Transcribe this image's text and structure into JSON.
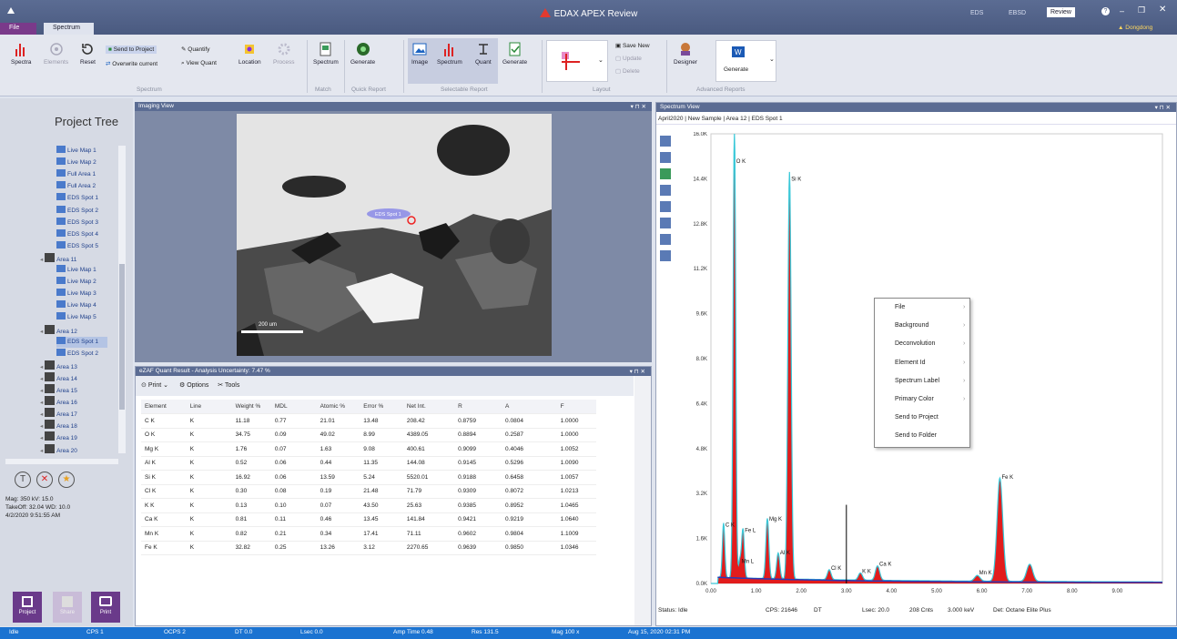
{
  "window": {
    "title": "EDAX APEX Review",
    "tabs": [
      "File",
      "Spectrum"
    ],
    "right_buttons": [
      "EDS",
      "EBSD",
      "Review"
    ],
    "user": "Dongdong"
  },
  "ribbon": {
    "spectra": "Spectra",
    "elements": "Elements",
    "reset": "Reset",
    "send_to_project": "Send to Project",
    "overwrite_current": "Overwrite current",
    "quantify": "Quantify",
    "view_quant": "View Quant",
    "location": "Location",
    "process": "Process",
    "spectrum_match": "Spectrum",
    "generate_quick": "Generate",
    "image": "Image",
    "spectrum_sel": "Spectrum",
    "quant_sel": "Quant",
    "generate_sel": "Generate",
    "save_new": "Save New",
    "update": "Update",
    "delete": "Delete",
    "designer": "Designer",
    "generate_adv": "Generate",
    "groups": [
      "Spectrum",
      "Match",
      "Quick Report",
      "Selectable Report",
      "Layout",
      "Advanced Reports"
    ]
  },
  "project_tree": {
    "title": "Project Tree",
    "items": [
      {
        "label": "Live Map 1",
        "indent": 2,
        "icon": "map"
      },
      {
        "label": "Live Map 2",
        "indent": 2,
        "icon": "map"
      },
      {
        "label": "Full Area 1",
        "indent": 2,
        "icon": "spec"
      },
      {
        "label": "Full Area 2",
        "indent": 2,
        "icon": "spec"
      },
      {
        "label": "EDS Spot 1",
        "indent": 2,
        "icon": "spec"
      },
      {
        "label": "EDS Spot 2",
        "indent": 2,
        "icon": "spec"
      },
      {
        "label": "EDS Spot 3",
        "indent": 2,
        "icon": "spec"
      },
      {
        "label": "EDS Spot 4",
        "indent": 2,
        "icon": "spec"
      },
      {
        "label": "EDS Spot 5",
        "indent": 2,
        "icon": "spec"
      },
      {
        "label": "Area 11",
        "indent": 1,
        "icon": "area"
      },
      {
        "label": "Live Map 1",
        "indent": 2,
        "icon": "map"
      },
      {
        "label": "Live Map 2",
        "indent": 2,
        "icon": "map"
      },
      {
        "label": "Live Map 3",
        "indent": 2,
        "icon": "map"
      },
      {
        "label": "Live Map 4",
        "indent": 2,
        "icon": "map"
      },
      {
        "label": "Live Map 5",
        "indent": 2,
        "icon": "map"
      },
      {
        "label": "Area 12",
        "indent": 1,
        "icon": "area"
      },
      {
        "label": "EDS Spot 1",
        "indent": 2,
        "icon": "spec",
        "selected": true
      },
      {
        "label": "EDS Spot 2",
        "indent": 2,
        "icon": "spec"
      },
      {
        "label": "Area 13",
        "indent": 1,
        "icon": "area"
      },
      {
        "label": "Area 14",
        "indent": 1,
        "icon": "area"
      },
      {
        "label": "Area 15",
        "indent": 1,
        "icon": "area"
      },
      {
        "label": "Area 16",
        "indent": 1,
        "icon": "area"
      },
      {
        "label": "Area 17",
        "indent": 1,
        "icon": "area"
      },
      {
        "label": "Area 18",
        "indent": 1,
        "icon": "area"
      },
      {
        "label": "Area 19",
        "indent": 1,
        "icon": "area"
      },
      {
        "label": "Area 20",
        "indent": 1,
        "icon": "area"
      }
    ],
    "info": [
      "Mag: 350 kV: 15.0",
      "TakeOff: 32.04 WD: 10.0",
      "4/2/2020 9:51:55 AM"
    ],
    "bottom_buttons": [
      "Project",
      "Share",
      "Print"
    ]
  },
  "imaging": {
    "title": "Imaging View",
    "spot_label": "EDS Spot 1",
    "scalebar": "200 um"
  },
  "quant": {
    "title": "eZAF Quant Result - Analysis Uncertainty: 7.47 %",
    "toolbar": [
      "Print",
      "Options",
      "Tools"
    ],
    "columns": [
      "Element",
      "Line",
      "Weight %",
      "MDL",
      "Atomic %",
      "Error %",
      "Net Int.",
      "R",
      "A",
      "F"
    ],
    "rows": [
      [
        "C K",
        "K",
        "11.18",
        "0.77",
        "21.01",
        "13.48",
        "208.42",
        "0.8759",
        "0.0804",
        "1.0000"
      ],
      [
        "O K",
        "K",
        "34.75",
        "0.09",
        "49.02",
        "8.99",
        "4389.05",
        "0.8894",
        "0.2587",
        "1.0000"
      ],
      [
        "Mg K",
        "K",
        "1.76",
        "0.07",
        "1.63",
        "9.08",
        "400.61",
        "0.9099",
        "0.4046",
        "1.0052"
      ],
      [
        "Al K",
        "K",
        "0.52",
        "0.06",
        "0.44",
        "11.35",
        "144.08",
        "0.9145",
        "0.5296",
        "1.0090"
      ],
      [
        "Si K",
        "K",
        "16.92",
        "0.06",
        "13.59",
        "5.24",
        "5520.01",
        "0.9188",
        "0.6458",
        "1.0057"
      ],
      [
        "Cl K",
        "K",
        "0.30",
        "0.08",
        "0.19",
        "21.48",
        "71.79",
        "0.9309",
        "0.8072",
        "1.0213"
      ],
      [
        "K K",
        "K",
        "0.13",
        "0.10",
        "0.07",
        "43.50",
        "25.63",
        "0.9385",
        "0.8952",
        "1.0465"
      ],
      [
        "Ca K",
        "K",
        "0.81",
        "0.11",
        "0.46",
        "13.45",
        "141.84",
        "0.9421",
        "0.9219",
        "1.0640"
      ],
      [
        "Mn K",
        "K",
        "0.82",
        "0.21",
        "0.34",
        "17.41",
        "71.11",
        "0.9602",
        "0.9804",
        "1.1009"
      ],
      [
        "Fe K",
        "K",
        "32.82",
        "0.25",
        "13.26",
        "3.12",
        "2270.65",
        "0.9639",
        "0.9850",
        "1.0346"
      ]
    ]
  },
  "spectrum": {
    "title": "Spectrum View",
    "subtitle": "April2020 | New Sample | Area 12 | EDS Spot 1",
    "status": {
      "status": "Status: Idle",
      "cps": "CPS: 21646",
      "dt": "DT",
      "lsec": "Lsec: 20.0",
      "cnts": "208 Cnts",
      "kev": "3.000 keV",
      "det": "Det: Octane Elite Plus"
    }
  },
  "chart_data": {
    "type": "area",
    "xlim": [
      0,
      10
    ],
    "ylim": [
      0,
      16000
    ],
    "yticks": [
      "0.0K",
      "1.6K",
      "3.2K",
      "4.8K",
      "6.4K",
      "8.0K",
      "9.6K",
      "11.2K",
      "12.8K",
      "14.4K",
      "16.0K"
    ],
    "xticks": [
      "0.00",
      "1.00",
      "2.00",
      "3.00",
      "4.00",
      "5.00",
      "6.00",
      "7.00",
      "8.00",
      "9.00"
    ],
    "peaks": [
      {
        "label": "C K",
        "x": 0.28,
        "y": 1900
      },
      {
        "label": "O K",
        "x": 0.52,
        "y": 15800
      },
      {
        "label": "Fe L",
        "x": 0.71,
        "y": 1700
      },
      {
        "label": "Mn L",
        "x": 0.64,
        "y": 600
      },
      {
        "label": "Mg K",
        "x": 1.25,
        "y": 2100
      },
      {
        "label": "Al K",
        "x": 1.49,
        "y": 900
      },
      {
        "label": "Si K",
        "x": 1.74,
        "y": 14200
      },
      {
        "label": "Cl K",
        "x": 2.62,
        "y": 350
      },
      {
        "label": "K K",
        "x": 3.31,
        "y": 250
      },
      {
        "label": "Ca K",
        "x": 3.69,
        "y": 500
      },
      {
        "label": "Mn K",
        "x": 5.9,
        "y": 200
      },
      {
        "label": "Fe K",
        "x": 6.4,
        "y": 3600
      },
      {
        "label": "",
        "x": 7.06,
        "y": 600
      }
    ],
    "marker_kev": 3.0
  },
  "context_menu": {
    "items": [
      "File",
      "Background",
      "Deconvolution",
      "Element Id",
      "Spectrum Label",
      "Primary Color",
      "Send to Project",
      "Send to Folder"
    ]
  },
  "statusbar": {
    "items": [
      "Idle",
      "CPS 1",
      "OCPS 2",
      "DT 0.0",
      "Lsec 0.0",
      "Amp Time 0.48",
      "Res 131.5",
      "Mag 100 x",
      "Aug 15, 2020 02:31 PM"
    ]
  }
}
